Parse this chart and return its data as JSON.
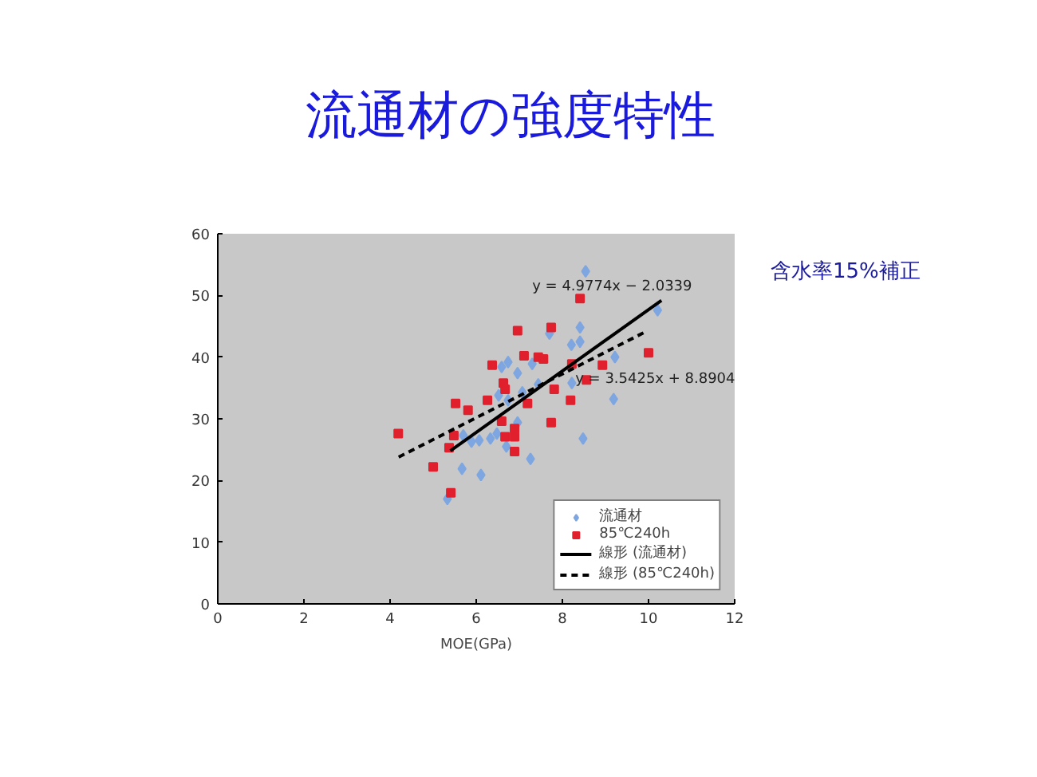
{
  "chart_data": {
    "type": "scatter",
    "title": "流通材の強度特性",
    "xlabel": "MOE(GPa)",
    "xlim": [
      0,
      12
    ],
    "xticks": [
      0,
      2,
      4,
      6,
      8,
      10,
      12
    ],
    "ylim": [
      0,
      60
    ],
    "yticks": [
      0,
      10,
      20,
      30,
      40,
      50,
      60
    ],
    "grid": false,
    "legend": "bottom right",
    "series": [
      {
        "name": "流通材",
        "marker": "diamond",
        "color": "#7ea6e0",
        "x": [
          8.54,
          10.21,
          8.41,
          7.7,
          8.21,
          8.41,
          6.74,
          6.59,
          7.3,
          6.96,
          7.44,
          9.22,
          8.22,
          9.19,
          6.52,
          7.07,
          6.74,
          5.33,
          5.67,
          6.11,
          5.89,
          6.07,
          6.33,
          6.48,
          6.7,
          7.26,
          8.48,
          5.7,
          6.96
        ],
        "values": [
          53.9,
          47.6,
          44.8,
          43.8,
          42.0,
          42.5,
          39.2,
          38.4,
          38.9,
          37.4,
          35.6,
          40.0,
          35.8,
          33.2,
          33.8,
          34.3,
          33.0,
          17.0,
          21.9,
          20.9,
          26.3,
          26.5,
          26.8,
          27.6,
          25.5,
          23.5,
          26.8,
          27.3,
          29.4
        ]
      },
      {
        "name": "85℃240h",
        "marker": "square",
        "color": "#e0202c",
        "x": [
          8.41,
          7.74,
          6.96,
          7.11,
          7.44,
          7.56,
          6.37,
          8.22,
          8.93,
          10.0,
          6.63,
          6.67,
          7.81,
          6.26,
          5.52,
          5.81,
          7.19,
          8.19,
          8.56,
          4.19,
          5.48,
          5.37,
          5.0,
          5.41,
          6.59,
          6.89,
          6.89,
          6.89,
          7.74,
          6.67
        ],
        "values": [
          49.5,
          44.8,
          44.3,
          40.2,
          40.0,
          39.7,
          38.7,
          38.9,
          38.7,
          40.7,
          35.8,
          34.8,
          34.8,
          33.0,
          32.5,
          31.4,
          32.5,
          33.0,
          36.3,
          27.6,
          27.3,
          25.3,
          22.2,
          18.0,
          29.6,
          28.4,
          27.1,
          24.7,
          29.4,
          27.1
        ]
      },
      {
        "name": "線形 (流通材)",
        "type": "line",
        "line_style": "solid",
        "color": "#000000",
        "x": [
          5.4,
          10.3
        ],
        "values": [
          24.8,
          49.2
        ]
      },
      {
        "name": "線形 (85℃240h)",
        "type": "line",
        "line_style": "dashed",
        "color": "#000000",
        "x": [
          4.2,
          9.9
        ],
        "values": [
          23.8,
          44.0
        ]
      }
    ],
    "annotations": [
      "y = 4.9774x − 2.0339",
      "y = 3.5425x + 8.8904",
      "含水率15%補正"
    ]
  }
}
